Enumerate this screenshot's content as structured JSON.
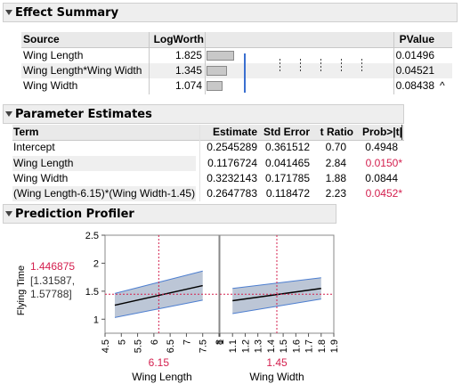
{
  "effect_summary": {
    "title": "Effect Summary",
    "columns": [
      "Source",
      "LogWorth",
      "PValue"
    ],
    "rows": [
      {
        "source": "Wing Length",
        "logworth": "1.825",
        "pvalue": "0.01496",
        "lw": 1.825,
        "mark": ""
      },
      {
        "source": "Wing Length*Wing Width",
        "logworth": "1.345",
        "pvalue": "0.04521",
        "lw": 1.345,
        "mark": ""
      },
      {
        "source": "Wing Width",
        "logworth": "1.074",
        "pvalue": "0.08438",
        "lw": 1.074,
        "mark": "^"
      }
    ]
  },
  "parameter_estimates": {
    "title": "Parameter Estimates",
    "columns": [
      "Term",
      "Estimate",
      "Std Error",
      "t Ratio",
      "Prob>|t|"
    ],
    "rows": [
      {
        "term": "Intercept",
        "estimate": "0.2545289",
        "std_error": "0.361512",
        "t_ratio": "0.70",
        "prob": "0.4948",
        "significant": false
      },
      {
        "term": "Wing Length",
        "estimate": "0.1176724",
        "std_error": "0.041465",
        "t_ratio": "2.84",
        "prob": "0.0150*",
        "significant": true
      },
      {
        "term": "Wing Width",
        "estimate": "0.3232143",
        "std_error": "0.171785",
        "t_ratio": "1.88",
        "prob": "0.0844",
        "significant": false
      },
      {
        "term": "(Wing Length-6.15)*(Wing Width-1.45)",
        "estimate": "0.2647783",
        "std_error": "0.118472",
        "t_ratio": "2.23",
        "prob": "0.0452*",
        "significant": true
      }
    ]
  },
  "prediction_profiler": {
    "title": "Prediction Profiler",
    "response": {
      "label": "Flying Time",
      "value": "1.446875",
      "ci_line1": "[1.31587,",
      "ci_line2": "1.57788]"
    },
    "colors": {
      "accent": "#d4204f",
      "band": "#bcc6d6",
      "band_edge": "#4e7fd0"
    },
    "chart_data": [
      {
        "type": "line",
        "factor": "Wing Length",
        "current": 6.15,
        "current_label": "6.15",
        "xlim": [
          4.5,
          8
        ],
        "xticks": [
          "4.5",
          "5",
          "5.5",
          "6",
          "6.5",
          "7",
          "7.5",
          "8"
        ],
        "ylim": [
          0.75,
          2.5
        ],
        "yticks": [
          "1",
          "1.5",
          "2",
          "2.5"
        ],
        "x": [
          4.8,
          7.5
        ],
        "y": [
          1.25,
          1.6
        ],
        "lower": [
          1.03,
          1.34
        ],
        "upper": [
          1.46,
          1.86
        ]
      },
      {
        "type": "line",
        "factor": "Wing Width",
        "current": 1.45,
        "current_label": "1.45",
        "xlim": [
          1.0,
          1.9
        ],
        "xticks": [
          "1",
          "1.1",
          "1.2",
          "1.3",
          "1.4",
          "1.5",
          "1.6",
          "1.7",
          "1.8",
          "1.9"
        ],
        "ylim": [
          0.75,
          2.5
        ],
        "x": [
          1.1,
          1.8
        ],
        "y": [
          1.33,
          1.55
        ],
        "lower": [
          1.1,
          1.36
        ],
        "upper": [
          1.55,
          1.74
        ]
      }
    ]
  }
}
